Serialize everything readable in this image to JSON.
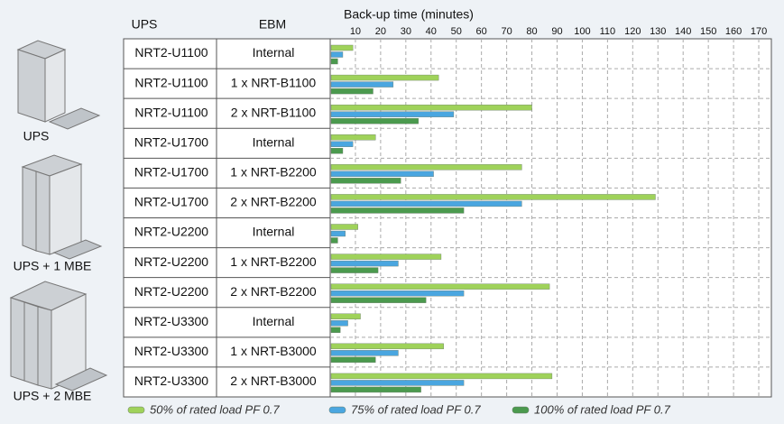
{
  "chart_data": {
    "type": "bar",
    "orientation": "horizontal",
    "column_headers": [
      "UPS",
      "EBM"
    ],
    "x_label": "Back-up time (minutes)",
    "ups": [
      "NRT2-U1100",
      "NRT2-U1100",
      "NRT2-U1100",
      "NRT2-U1700",
      "NRT2-U1700",
      "NRT2-U1700",
      "NRT2-U2200",
      "NRT2-U2200",
      "NRT2-U2200",
      "NRT2-U3300",
      "NRT2-U3300",
      "NRT2-U3300"
    ],
    "ebm": [
      "Internal",
      "1 x NRT-B1100",
      "2 x NRT-B1100",
      "Internal",
      "1 x NRT-B2200",
      "2 x NRT-B2200",
      "Internal",
      "1 x NRT-B2200",
      "2 x NRT-B2200",
      "Internal",
      "1 x NRT-B3000",
      "2 x NRT-B3000"
    ],
    "groups": [
      "UPS",
      "UPS + 1 MBE",
      "UPS + 2 MBE"
    ],
    "series": [
      {
        "name": "50% of rated load PF 0.7",
        "color": "#9fd25a",
        "values": [
          9,
          43,
          80,
          18,
          76,
          129,
          11,
          44,
          87,
          12,
          45,
          88
        ]
      },
      {
        "name": "75% of rated load PF 0.7",
        "color": "#4aa6e0",
        "values": [
          5,
          25,
          49,
          9,
          41,
          76,
          6,
          27,
          53,
          7,
          27,
          53
        ]
      },
      {
        "name": "100% of rated load PF 0.7",
        "color": "#4b9a4e",
        "values": [
          3,
          17,
          35,
          5,
          28,
          53,
          3,
          19,
          38,
          4,
          18,
          36
        ]
      }
    ],
    "xlim": [
      0,
      175
    ],
    "xticks": [
      10,
      20,
      30,
      40,
      50,
      60,
      70,
      80,
      90,
      100,
      110,
      120,
      130,
      140,
      150,
      160,
      170
    ],
    "grid": true
  }
}
